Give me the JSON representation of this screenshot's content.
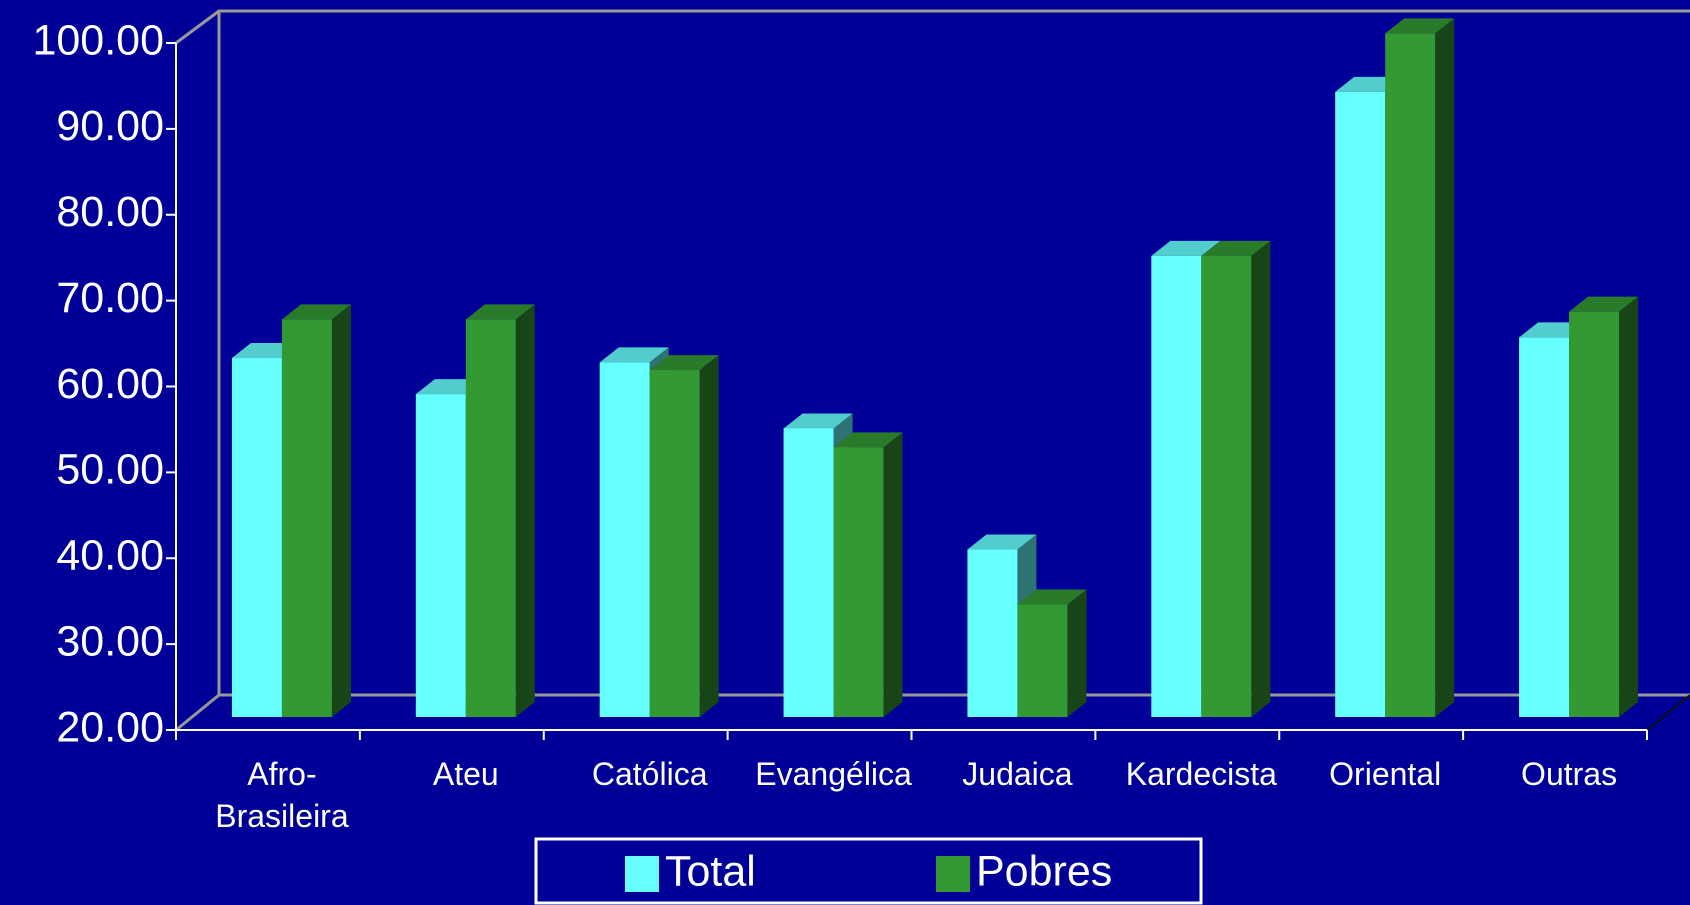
{
  "chart_data": {
    "type": "bar3d",
    "categories": [
      "Afro- Brasileira",
      "Ateu",
      "Católica",
      "Evangélica",
      "Judaica",
      "Kardecista",
      "Oriental",
      "Outras"
    ],
    "series": [
      {
        "name": "Total",
        "color": "#66ffff",
        "values": [
          61.8,
          57.6,
          61.3,
          53.6,
          39.5,
          73.7,
          92.8,
          64.2
        ]
      },
      {
        "name": "Pobres",
        "color": "#339933",
        "values": [
          66.3,
          66.3,
          60.4,
          51.4,
          33.1,
          73.7,
          99.6,
          67.2
        ]
      }
    ],
    "ylim": [
      20,
      100
    ],
    "yticks": [
      {
        "value": 20,
        "label": "20.00"
      },
      {
        "value": 30,
        "label": "30.00"
      },
      {
        "value": 40,
        "label": "40.00"
      },
      {
        "value": 50,
        "label": "50.00"
      },
      {
        "value": 60,
        "label": "60.00"
      },
      {
        "value": 70,
        "label": "70.00"
      },
      {
        "value": 80,
        "label": "80.00"
      },
      {
        "value": 90,
        "label": "90.00"
      },
      {
        "value": 100,
        "label": "100.00"
      }
    ],
    "legend": "bottom"
  }
}
